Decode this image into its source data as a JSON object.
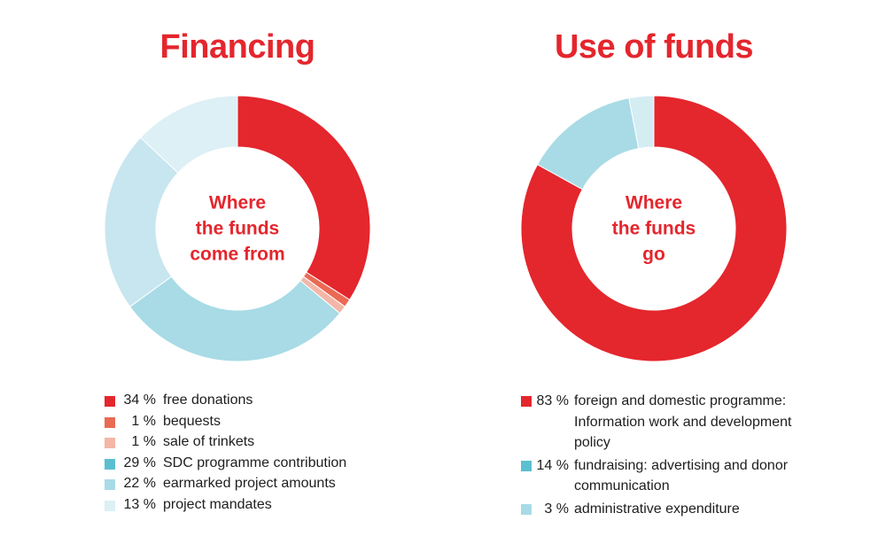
{
  "colors": {
    "accent_red": "#e4262d",
    "text": "#1e1e1e"
  },
  "chart_data": [
    {
      "type": "pie",
      "title": "Financing",
      "center_label": [
        "Where",
        "the funds",
        "come from"
      ],
      "slices": [
        {
          "label": "free donations",
          "value": 34,
          "pct_label": "34 %",
          "color": "#e4262d"
        },
        {
          "label": "bequests",
          "value": 1,
          "pct_label": "1 %",
          "color": "#ea6a54"
        },
        {
          "label": "sale of trinkets",
          "value": 1,
          "pct_label": "1 %",
          "color": "#f4b6a8"
        },
        {
          "label": "SDC programme contribution",
          "value": 29,
          "pct_label": "29 %",
          "color": "#a8dbe6"
        },
        {
          "label": "earmarked project amounts",
          "value": 22,
          "pct_label": "22 %",
          "color": "#c8e6ef"
        },
        {
          "label": "project mandates",
          "value": 13,
          "pct_label": "13 %",
          "color": "#dcf0f5"
        }
      ],
      "legend_swatches": [
        "#e4262d",
        "#ea6a54",
        "#f4b6a8",
        "#5bbfd0",
        "#a8dbe6",
        "#dcf0f5"
      ]
    },
    {
      "type": "pie",
      "title": "Use of funds",
      "center_label": [
        "Where",
        "the funds",
        "go"
      ],
      "slices": [
        {
          "label": "foreign and domestic programme: Information work and development policy",
          "value": 83,
          "pct_label": "83 %",
          "color": "#e4262d"
        },
        {
          "label": "fundraising: advertising and donor communication",
          "value": 14,
          "pct_label": "14 %",
          "color": "#a8dbe6"
        },
        {
          "label": "administrative expenditure",
          "value": 3,
          "pct_label": "3 %",
          "color": "#d4edf3"
        }
      ],
      "legend_swatches": [
        "#e4262d",
        "#5bbfd0",
        "#a8dbe6"
      ]
    }
  ]
}
